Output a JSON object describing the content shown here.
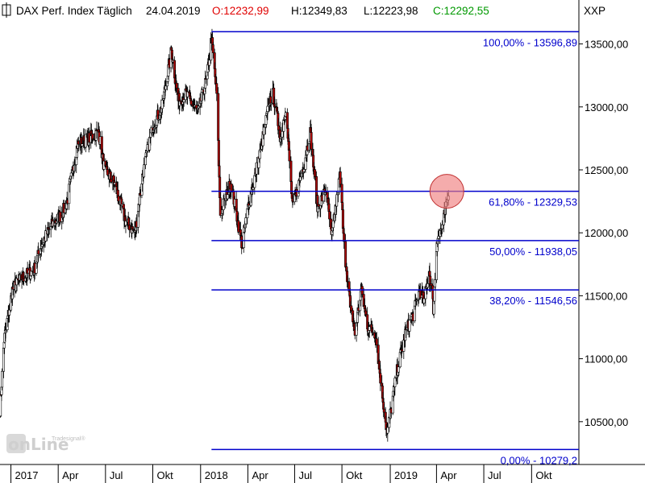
{
  "header": {
    "title": "DAX Perf. Index Täglich",
    "date": "24.04.2019",
    "open_label": "O:12232,99",
    "high_label": "H:12349,83",
    "low_label": "L:12223,98",
    "close_label": "C:12292,55",
    "symbol": "XXP",
    "colors": {
      "open": "#e00000",
      "high": "#000000",
      "low": "#000000",
      "close": "#009900"
    }
  },
  "logo": {
    "brand": "onLine",
    "sub": "Tradesignal®"
  },
  "chart_data": {
    "type": "candlestick",
    "title": "DAX Perf. Index Täglich",
    "y_ticks": [
      "10500,00",
      "11000,00",
      "11500,00",
      "12000,00",
      "12500,00",
      "13000,00",
      "13500,00"
    ],
    "y_tick_values": [
      10500,
      11000,
      11500,
      12000,
      12500,
      13000,
      13500
    ],
    "ylim": [
      10160,
      13670
    ],
    "x_ticks": [
      "2017",
      "Apr",
      "Jul",
      "Okt",
      "2018",
      "Apr",
      "Jul",
      "Okt",
      "2019",
      "Apr",
      "Jul",
      "Okt"
    ],
    "x_tick_dates": [
      "2017-01-02",
      "2017-04-03",
      "2017-07-03",
      "2017-10-02",
      "2018-01-02",
      "2018-04-03",
      "2018-07-02",
      "2018-10-01",
      "2019-01-02",
      "2019-04-01",
      "2019-07-01",
      "2019-10-01"
    ],
    "xlim": [
      "2016-12-12",
      "2019-12-31"
    ],
    "close_series": [
      {
        "date": "2016-12-12",
        "value": 10600
      },
      {
        "date": "2016-12-20",
        "value": 11150
      },
      {
        "date": "2017-01-05",
        "value": 11550
      },
      {
        "date": "2017-01-25",
        "value": 11650
      },
      {
        "date": "2017-02-15",
        "value": 11700
      },
      {
        "date": "2017-03-01",
        "value": 11900
      },
      {
        "date": "2017-03-20",
        "value": 12050
      },
      {
        "date": "2017-04-10",
        "value": 12150
      },
      {
        "date": "2017-04-20",
        "value": 12250
      },
      {
        "date": "2017-05-10",
        "value": 12700
      },
      {
        "date": "2017-06-01",
        "value": 12750
      },
      {
        "date": "2017-06-20",
        "value": 12800
      },
      {
        "date": "2017-07-01",
        "value": 12500
      },
      {
        "date": "2017-07-20",
        "value": 12400
      },
      {
        "date": "2017-08-10",
        "value": 12100
      },
      {
        "date": "2017-08-29",
        "value": 12000
      },
      {
        "date": "2017-09-12",
        "value": 12450
      },
      {
        "date": "2017-10-02",
        "value": 12850
      },
      {
        "date": "2017-10-20",
        "value": 13000
      },
      {
        "date": "2017-11-07",
        "value": 13450
      },
      {
        "date": "2017-11-20",
        "value": 13050
      },
      {
        "date": "2017-12-05",
        "value": 13100
      },
      {
        "date": "2017-12-28",
        "value": 12950
      },
      {
        "date": "2018-01-15",
        "value": 13250
      },
      {
        "date": "2018-01-23",
        "value": 13550
      },
      {
        "date": "2018-02-02",
        "value": 13100
      },
      {
        "date": "2018-02-09",
        "value": 12150
      },
      {
        "date": "2018-03-01",
        "value": 12400
      },
      {
        "date": "2018-03-23",
        "value": 11900
      },
      {
        "date": "2018-04-05",
        "value": 12250
      },
      {
        "date": "2018-04-25",
        "value": 12600
      },
      {
        "date": "2018-05-15",
        "value": 13050
      },
      {
        "date": "2018-05-22",
        "value": 13100
      },
      {
        "date": "2018-06-05",
        "value": 12750
      },
      {
        "date": "2018-06-15",
        "value": 13000
      },
      {
        "date": "2018-06-28",
        "value": 12200
      },
      {
        "date": "2018-07-20",
        "value": 12550
      },
      {
        "date": "2018-08-01",
        "value": 12800
      },
      {
        "date": "2018-08-15",
        "value": 12200
      },
      {
        "date": "2018-09-01",
        "value": 12350
      },
      {
        "date": "2018-09-11",
        "value": 11950
      },
      {
        "date": "2018-09-27",
        "value": 12450
      },
      {
        "date": "2018-10-11",
        "value": 11600
      },
      {
        "date": "2018-10-26",
        "value": 11200
      },
      {
        "date": "2018-11-07",
        "value": 11550
      },
      {
        "date": "2018-11-20",
        "value": 11250
      },
      {
        "date": "2018-12-05",
        "value": 11200
      },
      {
        "date": "2018-12-14",
        "value": 10850
      },
      {
        "date": "2018-12-27",
        "value": 10400
      },
      {
        "date": "2019-01-15",
        "value": 10900
      },
      {
        "date": "2019-01-31",
        "value": 11200
      },
      {
        "date": "2019-02-15",
        "value": 11350
      },
      {
        "date": "2019-02-28",
        "value": 11550
      },
      {
        "date": "2019-03-08",
        "value": 11450
      },
      {
        "date": "2019-03-18",
        "value": 11700
      },
      {
        "date": "2019-03-26",
        "value": 11400
      },
      {
        "date": "2019-04-02",
        "value": 11950
      },
      {
        "date": "2019-04-12",
        "value": 12050
      },
      {
        "date": "2019-04-24",
        "value": 12292.55
      }
    ],
    "fibonacci": {
      "start_date": "2018-01-23",
      "end_date": "2019-12-31",
      "levels": [
        {
          "label": "100,00% - 13596,89",
          "value": 13596.89
        },
        {
          "label": "61,80% - 12329,53",
          "value": 12329.53
        },
        {
          "label": "50,00% - 11938,05",
          "value": 11938.05
        },
        {
          "label": "38,20% - 11546,56",
          "value": 11546.56
        },
        {
          "label": "0,00% - 10279,2",
          "value": 10279.2
        }
      ],
      "color": "#0000cc"
    },
    "highlight": {
      "date": "2019-04-24",
      "value": 12330,
      "color": "#f08080"
    },
    "colors": {
      "up_candle": "#ffffff",
      "down_candle": "#b00000",
      "outline": "#000000"
    }
  }
}
